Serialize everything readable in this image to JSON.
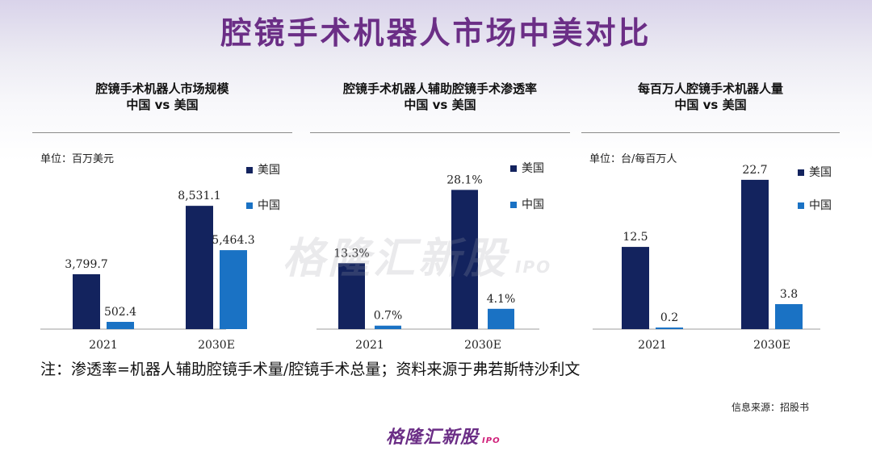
{
  "title": "腔镜手术机器人市场中美对比",
  "colors": {
    "us": "#13235e",
    "china": "#1a72c4",
    "title": "#6b2e86"
  },
  "watermark": {
    "text": "格隆汇新股",
    "ipo": "IPO"
  },
  "note": "注：渗透率=机器人辅助腔镜手术量/腔镜手术总量；资料来源于弗若斯特沙利文",
  "source": "信息来源：招股书",
  "logo": {
    "text": "格隆汇新股",
    "ipo": "IPO"
  },
  "chart_data": [
    {
      "type": "bar",
      "title_line1": "腔镜手术机器人市场规模",
      "title_line2": "中国 vs 美国",
      "unit": "单位：百万美元",
      "categories": [
        "2021",
        "2030E"
      ],
      "series": [
        {
          "name": "美国",
          "values": [
            3799.7,
            8531.1
          ],
          "labels": [
            "3,799.7",
            "8,531.1"
          ]
        },
        {
          "name": "中国",
          "values": [
            502.4,
            5464.3
          ],
          "labels": [
            "502.4",
            "5,464.3"
          ]
        }
      ],
      "ylim": [
        0,
        12000
      ]
    },
    {
      "type": "bar",
      "title_line1": "腔镜手术机器人辅助腔镜手术渗透率",
      "title_line2": "中国 vs 美国",
      "unit": "",
      "categories": [
        "2021",
        "2030E"
      ],
      "series": [
        {
          "name": "美国",
          "values": [
            13.3,
            28.1
          ],
          "labels": [
            "13.3%",
            "28.1%"
          ]
        },
        {
          "name": "中国",
          "values": [
            0.7,
            4.1
          ],
          "labels": [
            "0.7%",
            "4.1%"
          ]
        }
      ],
      "ylim": [
        0,
        35
      ]
    },
    {
      "type": "bar",
      "title_line1": "每百万人腔镜手术机器人量",
      "title_line2": "中国 vs 美国",
      "unit": "单位：台/每百万人",
      "categories": [
        "2021",
        "2030E"
      ],
      "series": [
        {
          "name": "美国",
          "values": [
            12.5,
            22.7
          ],
          "labels": [
            "12.5",
            "22.7"
          ]
        },
        {
          "name": "中国",
          "values": [
            0.2,
            3.8
          ],
          "labels": [
            "0.2",
            "3.8"
          ]
        }
      ],
      "ylim": [
        0,
        26
      ]
    }
  ]
}
